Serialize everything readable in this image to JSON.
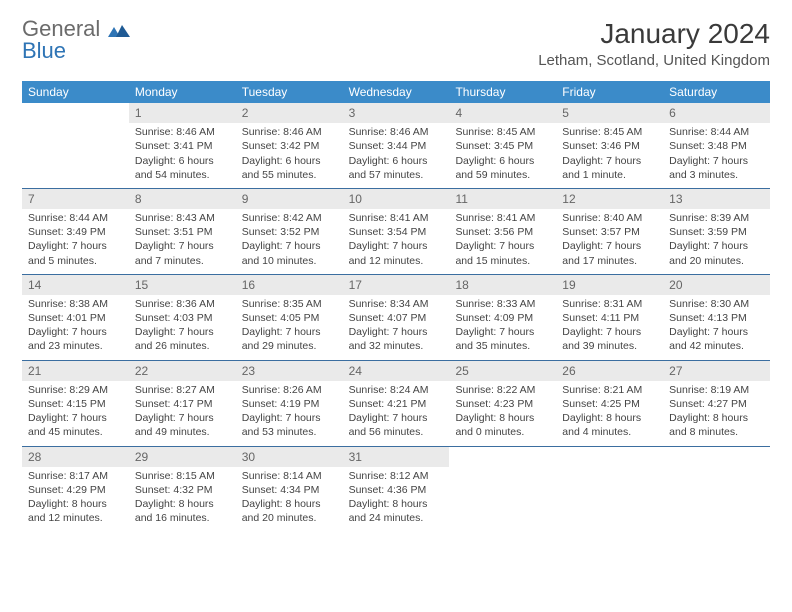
{
  "logo": {
    "line1": "General",
    "line2": "Blue"
  },
  "title": "January 2024",
  "location": "Letham, Scotland, United Kingdom",
  "day_headers": [
    "Sunday",
    "Monday",
    "Tuesday",
    "Wednesday",
    "Thursday",
    "Friday",
    "Saturday"
  ],
  "colors": {
    "header_bg": "#3b8bc9",
    "header_text": "#ffffff",
    "rule": "#3b6ea0",
    "daynum_bg": "#eaeaea",
    "logo_blue": "#2e74b5",
    "logo_gray": "#6b6b6b",
    "body_text": "#444444"
  },
  "weeks": [
    [
      {
        "n": "",
        "lines": []
      },
      {
        "n": "1",
        "lines": [
          "Sunrise: 8:46 AM",
          "Sunset: 3:41 PM",
          "Daylight: 6 hours",
          "and 54 minutes."
        ]
      },
      {
        "n": "2",
        "lines": [
          "Sunrise: 8:46 AM",
          "Sunset: 3:42 PM",
          "Daylight: 6 hours",
          "and 55 minutes."
        ]
      },
      {
        "n": "3",
        "lines": [
          "Sunrise: 8:46 AM",
          "Sunset: 3:44 PM",
          "Daylight: 6 hours",
          "and 57 minutes."
        ]
      },
      {
        "n": "4",
        "lines": [
          "Sunrise: 8:45 AM",
          "Sunset: 3:45 PM",
          "Daylight: 6 hours",
          "and 59 minutes."
        ]
      },
      {
        "n": "5",
        "lines": [
          "Sunrise: 8:45 AM",
          "Sunset: 3:46 PM",
          "Daylight: 7 hours",
          "and 1 minute."
        ]
      },
      {
        "n": "6",
        "lines": [
          "Sunrise: 8:44 AM",
          "Sunset: 3:48 PM",
          "Daylight: 7 hours",
          "and 3 minutes."
        ]
      }
    ],
    [
      {
        "n": "7",
        "lines": [
          "Sunrise: 8:44 AM",
          "Sunset: 3:49 PM",
          "Daylight: 7 hours",
          "and 5 minutes."
        ]
      },
      {
        "n": "8",
        "lines": [
          "Sunrise: 8:43 AM",
          "Sunset: 3:51 PM",
          "Daylight: 7 hours",
          "and 7 minutes."
        ]
      },
      {
        "n": "9",
        "lines": [
          "Sunrise: 8:42 AM",
          "Sunset: 3:52 PM",
          "Daylight: 7 hours",
          "and 10 minutes."
        ]
      },
      {
        "n": "10",
        "lines": [
          "Sunrise: 8:41 AM",
          "Sunset: 3:54 PM",
          "Daylight: 7 hours",
          "and 12 minutes."
        ]
      },
      {
        "n": "11",
        "lines": [
          "Sunrise: 8:41 AM",
          "Sunset: 3:56 PM",
          "Daylight: 7 hours",
          "and 15 minutes."
        ]
      },
      {
        "n": "12",
        "lines": [
          "Sunrise: 8:40 AM",
          "Sunset: 3:57 PM",
          "Daylight: 7 hours",
          "and 17 minutes."
        ]
      },
      {
        "n": "13",
        "lines": [
          "Sunrise: 8:39 AM",
          "Sunset: 3:59 PM",
          "Daylight: 7 hours",
          "and 20 minutes."
        ]
      }
    ],
    [
      {
        "n": "14",
        "lines": [
          "Sunrise: 8:38 AM",
          "Sunset: 4:01 PM",
          "Daylight: 7 hours",
          "and 23 minutes."
        ]
      },
      {
        "n": "15",
        "lines": [
          "Sunrise: 8:36 AM",
          "Sunset: 4:03 PM",
          "Daylight: 7 hours",
          "and 26 minutes."
        ]
      },
      {
        "n": "16",
        "lines": [
          "Sunrise: 8:35 AM",
          "Sunset: 4:05 PM",
          "Daylight: 7 hours",
          "and 29 minutes."
        ]
      },
      {
        "n": "17",
        "lines": [
          "Sunrise: 8:34 AM",
          "Sunset: 4:07 PM",
          "Daylight: 7 hours",
          "and 32 minutes."
        ]
      },
      {
        "n": "18",
        "lines": [
          "Sunrise: 8:33 AM",
          "Sunset: 4:09 PM",
          "Daylight: 7 hours",
          "and 35 minutes."
        ]
      },
      {
        "n": "19",
        "lines": [
          "Sunrise: 8:31 AM",
          "Sunset: 4:11 PM",
          "Daylight: 7 hours",
          "and 39 minutes."
        ]
      },
      {
        "n": "20",
        "lines": [
          "Sunrise: 8:30 AM",
          "Sunset: 4:13 PM",
          "Daylight: 7 hours",
          "and 42 minutes."
        ]
      }
    ],
    [
      {
        "n": "21",
        "lines": [
          "Sunrise: 8:29 AM",
          "Sunset: 4:15 PM",
          "Daylight: 7 hours",
          "and 45 minutes."
        ]
      },
      {
        "n": "22",
        "lines": [
          "Sunrise: 8:27 AM",
          "Sunset: 4:17 PM",
          "Daylight: 7 hours",
          "and 49 minutes."
        ]
      },
      {
        "n": "23",
        "lines": [
          "Sunrise: 8:26 AM",
          "Sunset: 4:19 PM",
          "Daylight: 7 hours",
          "and 53 minutes."
        ]
      },
      {
        "n": "24",
        "lines": [
          "Sunrise: 8:24 AM",
          "Sunset: 4:21 PM",
          "Daylight: 7 hours",
          "and 56 minutes."
        ]
      },
      {
        "n": "25",
        "lines": [
          "Sunrise: 8:22 AM",
          "Sunset: 4:23 PM",
          "Daylight: 8 hours",
          "and 0 minutes."
        ]
      },
      {
        "n": "26",
        "lines": [
          "Sunrise: 8:21 AM",
          "Sunset: 4:25 PM",
          "Daylight: 8 hours",
          "and 4 minutes."
        ]
      },
      {
        "n": "27",
        "lines": [
          "Sunrise: 8:19 AM",
          "Sunset: 4:27 PM",
          "Daylight: 8 hours",
          "and 8 minutes."
        ]
      }
    ],
    [
      {
        "n": "28",
        "lines": [
          "Sunrise: 8:17 AM",
          "Sunset: 4:29 PM",
          "Daylight: 8 hours",
          "and 12 minutes."
        ]
      },
      {
        "n": "29",
        "lines": [
          "Sunrise: 8:15 AM",
          "Sunset: 4:32 PM",
          "Daylight: 8 hours",
          "and 16 minutes."
        ]
      },
      {
        "n": "30",
        "lines": [
          "Sunrise: 8:14 AM",
          "Sunset: 4:34 PM",
          "Daylight: 8 hours",
          "and 20 minutes."
        ]
      },
      {
        "n": "31",
        "lines": [
          "Sunrise: 8:12 AM",
          "Sunset: 4:36 PM",
          "Daylight: 8 hours",
          "and 24 minutes."
        ]
      },
      {
        "n": "",
        "lines": []
      },
      {
        "n": "",
        "lines": []
      },
      {
        "n": "",
        "lines": []
      }
    ]
  ]
}
